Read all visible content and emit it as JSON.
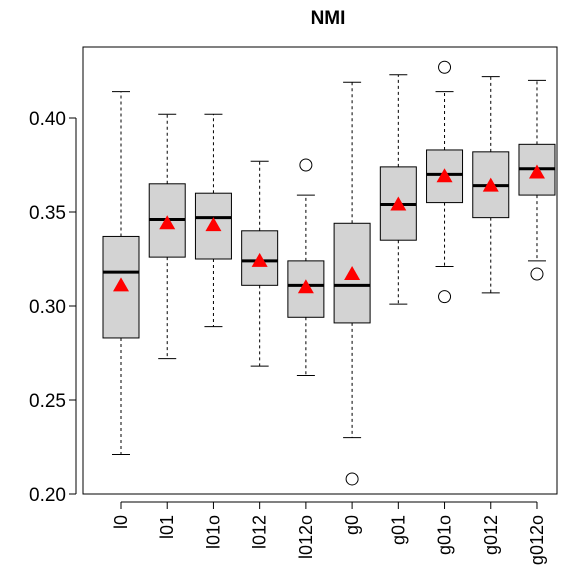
{
  "chart_data": {
    "type": "boxplot",
    "title": "NMI",
    "xlabel": "",
    "ylabel": "",
    "ylim": [
      0.2,
      0.43
    ],
    "yticks": [
      0.2,
      0.25,
      0.3,
      0.35,
      0.4
    ],
    "ytick_labels": [
      "0.20",
      "0.25",
      "0.30",
      "0.35",
      "0.40"
    ],
    "grid": false,
    "legend": "none",
    "colors": {
      "box_fill": "#d3d3d3",
      "median": "#000000",
      "mean_marker": "#ff0000",
      "outlier": "#000000"
    },
    "categories": [
      "l0",
      "l01",
      "l01o",
      "l012",
      "l012o",
      "g0",
      "g01",
      "g01o",
      "g012",
      "g012o"
    ],
    "boxes": [
      {
        "min": 0.221,
        "q1": 0.283,
        "median": 0.318,
        "q3": 0.337,
        "max": 0.414,
        "mean": 0.311,
        "outliers": []
      },
      {
        "min": 0.272,
        "q1": 0.326,
        "median": 0.346,
        "q3": 0.365,
        "max": 0.402,
        "mean": 0.344,
        "outliers": []
      },
      {
        "min": 0.289,
        "q1": 0.325,
        "median": 0.347,
        "q3": 0.36,
        "max": 0.402,
        "mean": 0.343,
        "outliers": []
      },
      {
        "min": 0.268,
        "q1": 0.311,
        "median": 0.324,
        "q3": 0.34,
        "max": 0.377,
        "mean": 0.324,
        "outliers": []
      },
      {
        "min": 0.263,
        "q1": 0.294,
        "median": 0.311,
        "q3": 0.324,
        "max": 0.359,
        "mean": 0.31,
        "outliers": [
          0.375
        ]
      },
      {
        "min": 0.23,
        "q1": 0.291,
        "median": 0.311,
        "q3": 0.344,
        "max": 0.419,
        "mean": 0.317,
        "outliers": [
          0.208
        ]
      },
      {
        "min": 0.301,
        "q1": 0.335,
        "median": 0.354,
        "q3": 0.374,
        "max": 0.423,
        "mean": 0.354,
        "outliers": []
      },
      {
        "min": 0.321,
        "q1": 0.355,
        "median": 0.37,
        "q3": 0.383,
        "max": 0.414,
        "mean": 0.369,
        "outliers": [
          0.305,
          0.427
        ]
      },
      {
        "min": 0.307,
        "q1": 0.347,
        "median": 0.364,
        "q3": 0.382,
        "max": 0.422,
        "mean": 0.364,
        "outliers": []
      },
      {
        "min": 0.324,
        "q1": 0.359,
        "median": 0.373,
        "q3": 0.386,
        "max": 0.42,
        "mean": 0.371,
        "outliers": [
          0.317
        ]
      }
    ]
  }
}
